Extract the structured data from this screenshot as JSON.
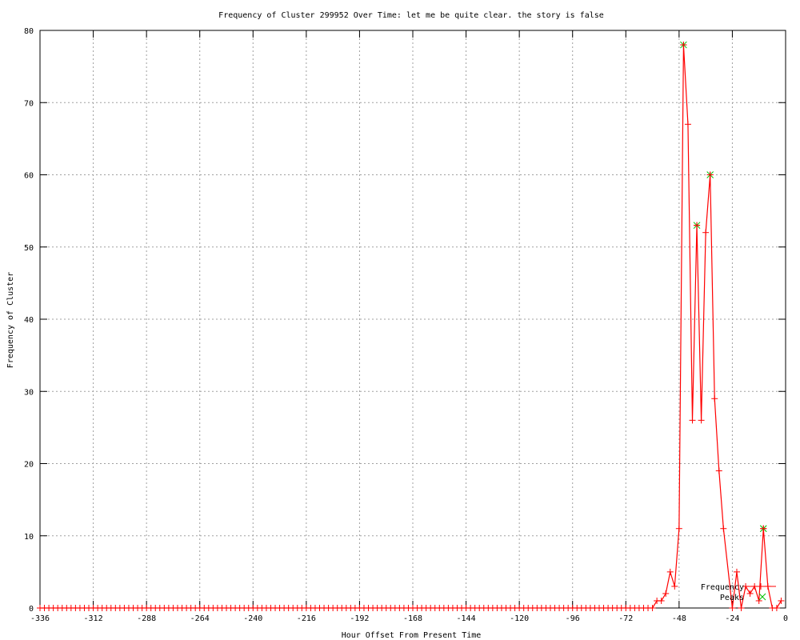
{
  "chart_data": {
    "type": "line",
    "title": "Frequency of Cluster 299952 Over Time: let me be quite clear. the story is false",
    "xlabel": "Hour Offset From Present Time",
    "ylabel": "Frequency of Cluster",
    "xlim": [
      -336,
      0
    ],
    "ylim": [
      0,
      80
    ],
    "xticks": [
      -336,
      -312,
      -288,
      -264,
      -240,
      -216,
      -192,
      -168,
      -144,
      -120,
      -96,
      -72,
      -48,
      -24,
      0
    ],
    "yticks": [
      0,
      10,
      20,
      30,
      40,
      50,
      60,
      70,
      80
    ],
    "grid": true,
    "legend_position": "bottom-right",
    "series": [
      {
        "name": "Frequency",
        "color": "#ff0000",
        "marker": "plus",
        "x": [
          -336,
          -334,
          -332,
          -330,
          -328,
          -326,
          -324,
          -322,
          -320,
          -318,
          -316,
          -314,
          -312,
          -310,
          -308,
          -306,
          -304,
          -302,
          -300,
          -298,
          -296,
          -294,
          -292,
          -290,
          -288,
          -286,
          -284,
          -282,
          -280,
          -278,
          -276,
          -274,
          -272,
          -270,
          -268,
          -266,
          -264,
          -262,
          -260,
          -258,
          -256,
          -254,
          -252,
          -250,
          -248,
          -246,
          -244,
          -242,
          -240,
          -238,
          -236,
          -234,
          -232,
          -230,
          -228,
          -226,
          -224,
          -222,
          -220,
          -218,
          -216,
          -214,
          -212,
          -210,
          -208,
          -206,
          -204,
          -202,
          -200,
          -198,
          -196,
          -194,
          -192,
          -190,
          -188,
          -186,
          -184,
          -182,
          -180,
          -178,
          -176,
          -174,
          -172,
          -170,
          -168,
          -166,
          -164,
          -162,
          -160,
          -158,
          -156,
          -154,
          -152,
          -150,
          -148,
          -146,
          -144,
          -142,
          -140,
          -138,
          -136,
          -134,
          -132,
          -130,
          -128,
          -126,
          -124,
          -122,
          -120,
          -118,
          -116,
          -114,
          -112,
          -110,
          -108,
          -106,
          -104,
          -102,
          -100,
          -98,
          -96,
          -94,
          -92,
          -90,
          -88,
          -86,
          -84,
          -82,
          -80,
          -78,
          -76,
          -74,
          -72,
          -70,
          -68,
          -66,
          -64,
          -62,
          -60,
          -58,
          -56,
          -54,
          -52,
          -50,
          -48,
          -46,
          -44,
          -42,
          -40,
          -38,
          -36,
          -34,
          -32,
          -30,
          -28,
          -24,
          -22,
          -20,
          -18,
          -16,
          -14,
          -12,
          -10,
          -8,
          -6,
          -4,
          -2
        ],
        "y": [
          0,
          0,
          0,
          0,
          0,
          0,
          0,
          0,
          0,
          0,
          0,
          0,
          0,
          0,
          0,
          0,
          0,
          0,
          0,
          0,
          0,
          0,
          0,
          0,
          0,
          0,
          0,
          0,
          0,
          0,
          0,
          0,
          0,
          0,
          0,
          0,
          0,
          0,
          0,
          0,
          0,
          0,
          0,
          0,
          0,
          0,
          0,
          0,
          0,
          0,
          0,
          0,
          0,
          0,
          0,
          0,
          0,
          0,
          0,
          0,
          0,
          0,
          0,
          0,
          0,
          0,
          0,
          0,
          0,
          0,
          0,
          0,
          0,
          0,
          0,
          0,
          0,
          0,
          0,
          0,
          0,
          0,
          0,
          0,
          0,
          0,
          0,
          0,
          0,
          0,
          0,
          0,
          0,
          0,
          0,
          0,
          0,
          0,
          0,
          0,
          0,
          0,
          0,
          0,
          0,
          0,
          0,
          0,
          0,
          0,
          0,
          0,
          0,
          0,
          0,
          0,
          0,
          0,
          0,
          0,
          0,
          0,
          0,
          0,
          0,
          0,
          0,
          0,
          0,
          0,
          0,
          0,
          0,
          0,
          0,
          0,
          0,
          0,
          0,
          1,
          1,
          2,
          5,
          3,
          11,
          78,
          67,
          26,
          53,
          26,
          52,
          60,
          29,
          19,
          11,
          0,
          5,
          0,
          3,
          2,
          3,
          1,
          11,
          3,
          0,
          0,
          1
        ]
      },
      {
        "name": "Peaks",
        "color": "#00c000",
        "marker": "x",
        "x": [
          -46,
          -40,
          -34,
          -10
        ],
        "y": [
          78,
          53,
          60,
          11
        ]
      }
    ]
  }
}
